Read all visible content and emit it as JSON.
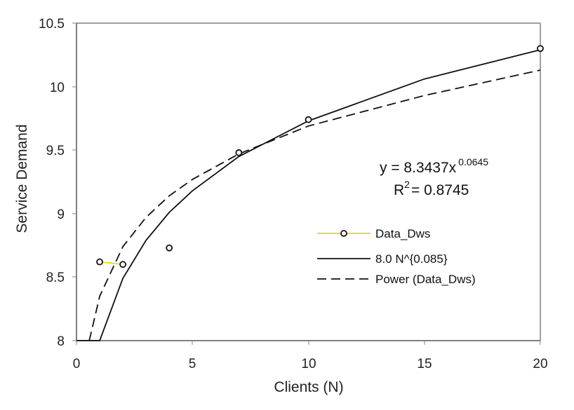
{
  "chart_data": {
    "type": "scatter",
    "title": "",
    "xlabel": "Clients (N)",
    "ylabel": "Service Demand",
    "xlim": [
      0,
      20
    ],
    "ylim": [
      8,
      10.5
    ],
    "x_ticks": [
      "0",
      "5",
      "10",
      "15",
      "20"
    ],
    "y_ticks": [
      "8",
      "8.5",
      "9",
      "9.5",
      "10",
      "10.5"
    ],
    "grid": false,
    "legend_position": "lower-right inside plot",
    "series": [
      {
        "name": "Data_Dws",
        "style": "circle markers, yellow line joining only N=1 and N=2",
        "color": "#f0dc1e",
        "x": [
          1,
          2,
          4,
          7,
          10,
          20
        ],
        "values": [
          8.62,
          8.6,
          8.73,
          9.48,
          9.74,
          10.3
        ]
      },
      {
        "name": "8.0 N^{0.085}",
        "style": "solid black line",
        "color": "#111111",
        "x": [
          0,
          1,
          2,
          3,
          4,
          5,
          7,
          10,
          15,
          20
        ],
        "values": [
          8.0,
          8.0,
          8.49,
          8.79,
          9.01,
          9.18,
          9.45,
          9.73,
          10.06,
          10.29
        ],
        "note": "y-values read from the plotted curve's pixel positions"
      },
      {
        "name": "Power (Data_Dws)",
        "style": "dashed black line (trendline)",
        "color": "#111111",
        "x": [
          0.55,
          1,
          2,
          3,
          4,
          5,
          7,
          10,
          15,
          20
        ],
        "values": [
          8.0,
          8.35,
          8.74,
          8.97,
          9.14,
          9.27,
          9.47,
          9.69,
          9.93,
          10.13
        ],
        "note": "y-values read from the plotted curve's pixel positions; the drawn curve lies slightly above the labeled fit equation at large N (e.g. curve ~10.13 vs 8.3437*20^0.0645 ~ 10.05)"
      }
    ],
    "annotations": {
      "equation_main": "y = 8.3437x",
      "equation_exponent": "0.0645",
      "r_squared_label": "R",
      "r_squared_sup": "2",
      "r_squared_value": "= 0.8745"
    }
  },
  "axes": {
    "x_title": "Clients (N)",
    "y_title": "Service Demand",
    "x_ticks": [
      "0",
      "5",
      "10",
      "15",
      "20"
    ],
    "y_ticks": [
      "8",
      "8.5",
      "9",
      "9.5",
      "10",
      "10.5"
    ]
  },
  "legend": {
    "items": [
      {
        "label": "Data_Dws"
      },
      {
        "label": "8.0 N^{0.085}"
      },
      {
        "label": "Power (Data_Dws)"
      }
    ]
  },
  "colors": {
    "axis": "#808080",
    "data_line": "#f0dc1e",
    "curves": "#111111"
  }
}
